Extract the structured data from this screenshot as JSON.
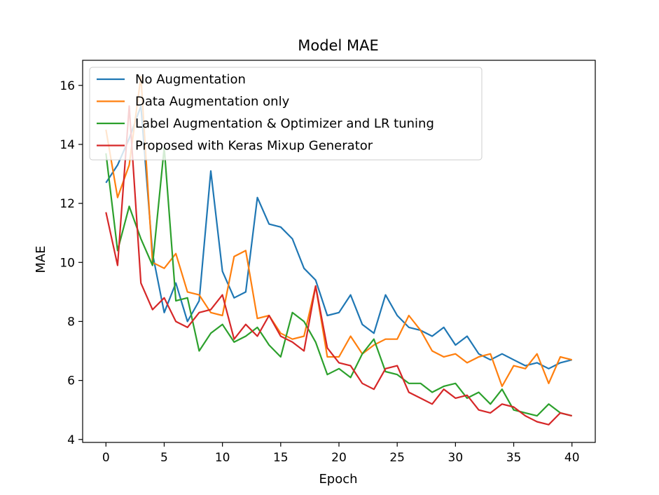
{
  "chart_data": {
    "type": "line",
    "title": "Model MAE",
    "xlabel": "Epoch",
    "ylabel": "MAE",
    "xlim": [
      -2,
      42
    ],
    "ylim": [
      3.9,
      16.85
    ],
    "xticks": [
      0,
      5,
      10,
      15,
      20,
      25,
      30,
      35,
      40
    ],
    "yticks": [
      4,
      6,
      8,
      10,
      12,
      14,
      16
    ],
    "grid": false,
    "legend_position": "top-left",
    "x": [
      0,
      1,
      2,
      3,
      4,
      5,
      6,
      7,
      8,
      9,
      10,
      11,
      12,
      13,
      14,
      15,
      16,
      17,
      18,
      19,
      20,
      21,
      22,
      23,
      24,
      25,
      26,
      27,
      28,
      29,
      30,
      31,
      32,
      33,
      34,
      35,
      36,
      37,
      38,
      39,
      40
    ],
    "series": [
      {
        "name": "No Augmentation",
        "color": "#1f77b4",
        "values": [
          12.7,
          13.3,
          14.2,
          15.3,
          10.3,
          8.3,
          9.3,
          8.0,
          8.7,
          13.1,
          9.7,
          8.8,
          9.0,
          12.2,
          11.3,
          11.2,
          10.8,
          9.8,
          9.4,
          8.2,
          8.3,
          8.9,
          7.9,
          7.6,
          8.9,
          8.2,
          7.8,
          7.7,
          7.5,
          7.8,
          7.2,
          7.5,
          6.9,
          6.7,
          6.9,
          6.7,
          6.5,
          6.6,
          6.4,
          6.6,
          6.7
        ]
      },
      {
        "name": "Data Augmentation only",
        "color": "#ff7f0e",
        "values": [
          14.5,
          12.2,
          13.3,
          16.3,
          10.0,
          9.8,
          10.3,
          9.0,
          8.9,
          8.3,
          8.2,
          10.2,
          10.4,
          8.1,
          8.2,
          7.6,
          7.4,
          7.5,
          9.2,
          6.8,
          6.8,
          7.5,
          6.9,
          7.2,
          7.4,
          7.4,
          8.2,
          7.7,
          7.0,
          6.8,
          6.9,
          6.6,
          6.8,
          6.9,
          5.8,
          6.5,
          6.4,
          6.9,
          5.9,
          6.8,
          6.7
        ]
      },
      {
        "name": "Label Augmentation & Optimizer and LR tuning",
        "color": "#2ca02c",
        "values": [
          13.7,
          10.4,
          11.9,
          10.8,
          9.9,
          13.9,
          8.7,
          8.8,
          7.0,
          7.6,
          7.9,
          7.3,
          7.5,
          7.8,
          7.2,
          6.8,
          8.3,
          8.0,
          7.3,
          6.2,
          6.4,
          6.1,
          6.9,
          7.4,
          6.3,
          6.2,
          5.9,
          5.9,
          5.6,
          5.8,
          5.9,
          5.4,
          5.6,
          5.2,
          5.7,
          5.0,
          4.9,
          4.8,
          5.2,
          4.9,
          4.8
        ]
      },
      {
        "name": "Proposed with Keras Mixup Generator",
        "color": "#d62728",
        "values": [
          11.7,
          9.9,
          15.3,
          9.3,
          8.4,
          8.8,
          8.0,
          7.8,
          8.3,
          8.4,
          8.9,
          7.4,
          7.9,
          7.5,
          8.2,
          7.5,
          7.3,
          7.0,
          9.2,
          7.1,
          6.6,
          6.5,
          5.9,
          5.7,
          6.4,
          6.5,
          5.6,
          5.4,
          5.2,
          5.7,
          5.4,
          5.5,
          5.0,
          4.9,
          5.2,
          5.1,
          4.8,
          4.6,
          4.5,
          4.9,
          4.8
        ]
      }
    ]
  }
}
